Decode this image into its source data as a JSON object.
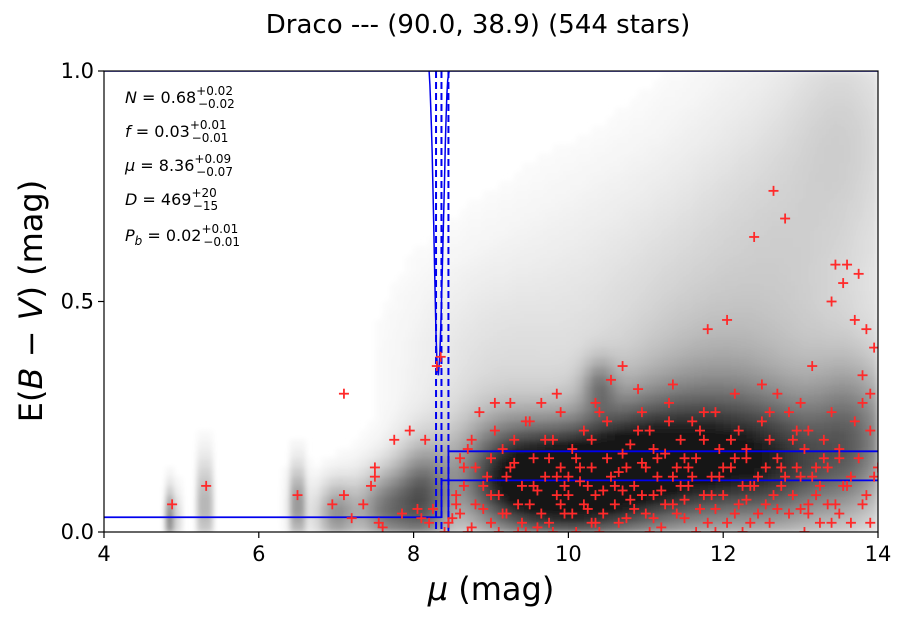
{
  "chart_data": {
    "type": "scatter",
    "title": "Draco --- (90.0, 38.9) (544 stars)",
    "xlabel": "μ (mag)",
    "ylabel": "E(B − V) (mag)",
    "xlim": [
      4,
      14
    ],
    "ylim": [
      0,
      1
    ],
    "x_ticks": [
      4,
      6,
      8,
      10,
      12,
      14
    ],
    "x_tick_labels": [
      "4",
      "6",
      "8",
      "10",
      "12",
      "14"
    ],
    "y_ticks": [
      0,
      0.5,
      1
    ],
    "y_tick_labels": [
      "0.0",
      "0.5",
      "1.0"
    ],
    "grid": false,
    "annotations": [
      {
        "name": "N",
        "value": "0.68",
        "plus": "0.02",
        "minus": "0.02"
      },
      {
        "name": "f",
        "value": "0.03",
        "plus": "0.01",
        "minus": "0.01"
      },
      {
        "name": "μ",
        "value": "8.36",
        "plus": "0.09",
        "minus": "0.07"
      },
      {
        "name": "D",
        "value": "469",
        "plus": "20",
        "minus": "15"
      },
      {
        "name": "P_b",
        "value": "0.02",
        "plus": "0.01",
        "minus": "0.01"
      }
    ],
    "colors": {
      "stars": "#ff2a2a",
      "model": "#0000ee",
      "density": "#000000"
    },
    "density_blobs": [
      {
        "x": 4.88,
        "y": 0.03,
        "sx": 0.04,
        "sy": 0.045,
        "w": 0.8
      },
      {
        "x": 5.3,
        "y": 0.06,
        "sx": 0.04,
        "sy": 0.07,
        "w": 0.75
      },
      {
        "x": 6.5,
        "y": 0.06,
        "sx": 0.07,
        "sy": 0.06,
        "w": 0.6
      },
      {
        "x": 7.0,
        "y": 0.04,
        "sx": 0.18,
        "sy": 0.05,
        "w": 0.5
      },
      {
        "x": 7.6,
        "y": 0.05,
        "sx": 0.25,
        "sy": 0.06,
        "w": 0.55
      },
      {
        "x": 8.1,
        "y": 0.07,
        "sx": 0.25,
        "sy": 0.08,
        "w": 0.7
      },
      {
        "x": 9.2,
        "y": 0.12,
        "sx": 0.5,
        "sy": 0.09,
        "w": 0.8
      },
      {
        "x": 10.0,
        "y": 0.1,
        "sx": 0.55,
        "sy": 0.08,
        "w": 1.0
      },
      {
        "x": 10.8,
        "y": 0.14,
        "sx": 0.6,
        "sy": 0.1,
        "w": 0.85
      },
      {
        "x": 11.8,
        "y": 0.15,
        "sx": 0.65,
        "sy": 0.1,
        "w": 0.75
      },
      {
        "x": 12.8,
        "y": 0.14,
        "sx": 0.55,
        "sy": 0.1,
        "w": 0.6
      },
      {
        "x": 13.7,
        "y": 0.2,
        "sx": 0.4,
        "sy": 0.12,
        "w": 0.55
      },
      {
        "x": 10.4,
        "y": 0.32,
        "sx": 0.15,
        "sy": 0.04,
        "w": 0.35
      },
      {
        "x": 12.0,
        "y": 0.3,
        "sx": 0.9,
        "sy": 0.12,
        "w": 0.25
      },
      {
        "x": 11.5,
        "y": 0.5,
        "sx": 1.5,
        "sy": 0.2,
        "w": 0.15
      },
      {
        "x": 13.0,
        "y": 0.7,
        "sx": 1.0,
        "sy": 0.25,
        "w": 0.15
      },
      {
        "x": 9.0,
        "y": 0.35,
        "sx": 0.8,
        "sy": 0.15,
        "w": 0.12
      },
      {
        "x": 13.6,
        "y": 0.9,
        "sx": 0.5,
        "sy": 0.15,
        "w": 0.12
      }
    ],
    "model_lines": {
      "dashed_verticals": [
        8.29,
        8.36,
        8.45
      ],
      "steps": [
        {
          "x": [
            4,
            8.36
          ],
          "y": [
            0.032,
            0.032
          ]
        },
        {
          "x": [
            8.36,
            8.36
          ],
          "y": [
            0.032,
            0.112
          ]
        },
        {
          "x": [
            8.36,
            14
          ],
          "y": [
            0.112,
            0.112
          ]
        },
        {
          "x": [
            8.45,
            8.45
          ],
          "y": [
            0,
            0.175
          ]
        },
        {
          "x": [
            8.45,
            14
          ],
          "y": [
            0.175,
            0.175
          ]
        }
      ],
      "posterior_left": [
        [
          8.2,
          1.0
        ],
        [
          8.21,
          0.97
        ],
        [
          8.22,
          0.93
        ],
        [
          8.23,
          0.88
        ],
        [
          8.24,
          0.82
        ],
        [
          8.25,
          0.75
        ],
        [
          8.26,
          0.67
        ],
        [
          8.27,
          0.58
        ],
        [
          8.28,
          0.5
        ],
        [
          8.29,
          0.43
        ],
        [
          8.3,
          0.38
        ],
        [
          8.31,
          0.35
        ],
        [
          8.32,
          0.34
        ]
      ],
      "posterior_right": [
        [
          8.32,
          0.34
        ],
        [
          8.33,
          0.36
        ],
        [
          8.34,
          0.39
        ],
        [
          8.35,
          0.44
        ],
        [
          8.36,
          0.5
        ],
        [
          8.37,
          0.56
        ],
        [
          8.38,
          0.63
        ],
        [
          8.39,
          0.7
        ],
        [
          8.4,
          0.77
        ],
        [
          8.41,
          0.84
        ],
        [
          8.42,
          0.9
        ],
        [
          8.43,
          0.95
        ],
        [
          8.44,
          0.98
        ],
        [
          8.46,
          1.0
        ]
      ]
    },
    "points": [
      [
        4.88,
        0.06
      ],
      [
        5.32,
        0.1
      ],
      [
        6.5,
        0.08
      ],
      [
        6.95,
        0.06
      ],
      [
        7.1,
        0.3
      ],
      [
        7.1,
        0.08
      ],
      [
        7.2,
        0.03
      ],
      [
        7.35,
        0.06
      ],
      [
        7.45,
        0.1
      ],
      [
        7.5,
        0.14
      ],
      [
        7.5,
        0.12
      ],
      [
        7.55,
        0.02
      ],
      [
        7.6,
        0.01
      ],
      [
        7.75,
        0.2
      ],
      [
        7.85,
        0.04
      ],
      [
        7.95,
        0.22
      ],
      [
        8.05,
        0.05
      ],
      [
        8.1,
        0.03
      ],
      [
        8.15,
        0.2
      ],
      [
        8.2,
        0.02
      ],
      [
        8.25,
        0.05
      ],
      [
        8.3,
        0.36
      ],
      [
        8.35,
        0.38
      ],
      [
        8.4,
        0.0
      ],
      [
        8.45,
        0.02
      ],
      [
        8.5,
        0.03
      ],
      [
        8.55,
        0.06
      ],
      [
        8.6,
        0.16
      ],
      [
        8.65,
        0.1
      ],
      [
        8.7,
        0.0
      ],
      [
        8.75,
        0.2
      ],
      [
        8.8,
        0.14
      ],
      [
        8.85,
        0.26
      ],
      [
        8.9,
        0.05
      ],
      [
        8.95,
        0.12
      ],
      [
        9.0,
        0.02
      ],
      [
        9.05,
        0.22
      ],
      [
        9.1,
        0.08
      ],
      [
        9.15,
        0.18
      ],
      [
        9.2,
        0.04
      ],
      [
        9.25,
        0.28
      ],
      [
        9.3,
        0.15
      ],
      [
        9.35,
        0.0
      ],
      [
        9.4,
        0.1
      ],
      [
        9.45,
        0.24
      ],
      [
        9.5,
        0.06
      ],
      [
        9.55,
        0.16
      ],
      [
        9.6,
        0.01
      ],
      [
        9.65,
        0.28
      ],
      [
        9.7,
        0.12
      ],
      [
        9.75,
        0.02
      ],
      [
        9.8,
        0.2
      ],
      [
        9.85,
        0.08
      ],
      [
        9.9,
        0.14
      ],
      [
        9.95,
        0.04
      ],
      [
        10.0,
        0.08
      ],
      [
        10.05,
        0.18
      ],
      [
        10.1,
        0.0
      ],
      [
        10.15,
        0.11
      ],
      [
        10.2,
        0.22
      ],
      [
        10.25,
        0.05
      ],
      [
        10.3,
        0.14
      ],
      [
        10.35,
        0.02
      ],
      [
        10.4,
        0.26
      ],
      [
        10.45,
        0.09
      ],
      [
        10.5,
        0.16
      ],
      [
        10.55,
        0.33
      ],
      [
        10.6,
        0.06
      ],
      [
        10.65,
        0.13
      ],
      [
        10.7,
        0.36
      ],
      [
        10.75,
        0.03
      ],
      [
        10.8,
        0.19
      ],
      [
        10.85,
        0.1
      ],
      [
        10.9,
        0.31
      ],
      [
        10.95,
        0.15
      ],
      [
        11.0,
        0.04
      ],
      [
        11.05,
        0.22
      ],
      [
        11.1,
        0.08
      ],
      [
        11.15,
        0.12
      ],
      [
        11.2,
        0.01
      ],
      [
        11.25,
        0.17
      ],
      [
        11.3,
        0.28
      ],
      [
        11.35,
        0.06
      ],
      [
        11.4,
        0.14
      ],
      [
        11.45,
        0.2
      ],
      [
        11.5,
        0.03
      ],
      [
        11.55,
        0.1
      ],
      [
        11.6,
        0.24
      ],
      [
        11.65,
        0.16
      ],
      [
        11.7,
        0.05
      ],
      [
        11.75,
        0.2
      ],
      [
        11.8,
        0.44
      ],
      [
        11.85,
        0.12
      ],
      [
        11.9,
        0.0
      ],
      [
        11.95,
        0.18
      ],
      [
        12.0,
        0.08
      ],
      [
        12.05,
        0.46
      ],
      [
        12.1,
        0.14
      ],
      [
        12.15,
        0.04
      ],
      [
        12.2,
        0.22
      ],
      [
        12.25,
        0.1
      ],
      [
        12.3,
        0.16
      ],
      [
        12.35,
        0.02
      ],
      [
        12.4,
        0.64
      ],
      [
        12.45,
        0.12
      ],
      [
        12.5,
        0.32
      ],
      [
        12.55,
        0.06
      ],
      [
        12.6,
        0.2
      ],
      [
        12.65,
        0.74
      ],
      [
        12.7,
        0.3
      ],
      [
        12.75,
        0.14
      ],
      [
        12.8,
        0.68
      ],
      [
        12.85,
        0.26
      ],
      [
        12.9,
        0.08
      ],
      [
        12.95,
        0.22
      ],
      [
        13.0,
        0.12
      ],
      [
        13.05,
        0.18
      ],
      [
        13.1,
        0.04
      ],
      [
        13.15,
        0.36
      ],
      [
        13.2,
        0.14
      ],
      [
        13.25,
        0.1
      ],
      [
        13.3,
        0.2
      ],
      [
        13.35,
        0.06
      ],
      [
        13.4,
        0.5
      ],
      [
        13.45,
        0.58
      ],
      [
        13.5,
        0.16
      ],
      [
        13.55,
        0.54
      ],
      [
        13.6,
        0.58
      ],
      [
        13.65,
        0.12
      ],
      [
        13.7,
        0.46
      ],
      [
        13.75,
        0.56
      ],
      [
        13.8,
        0.34
      ],
      [
        13.85,
        0.44
      ],
      [
        13.9,
        0.22
      ],
      [
        13.95,
        0.4
      ],
      [
        14.0,
        0.14
      ],
      [
        8.6,
        0.04
      ],
      [
        8.9,
        0.1
      ],
      [
        9.2,
        0.12
      ],
      [
        9.4,
        0.02
      ],
      [
        9.6,
        0.09
      ],
      [
        9.8,
        0.0
      ],
      [
        10.0,
        0.12
      ],
      [
        10.2,
        0.06
      ],
      [
        10.4,
        0.0
      ],
      [
        10.6,
        0.1
      ],
      [
        10.8,
        0.07
      ],
      [
        11.0,
        0.14
      ],
      [
        11.2,
        0.09
      ],
      [
        11.4,
        0.04
      ],
      [
        11.6,
        0.12
      ],
      [
        11.8,
        0.02
      ],
      [
        12.0,
        0.14
      ],
      [
        12.2,
        0.06
      ],
      [
        12.4,
        0.1
      ],
      [
        12.6,
        0.02
      ],
      [
        12.8,
        0.12
      ],
      [
        13.0,
        0.05
      ],
      [
        13.2,
        0.08
      ],
      [
        13.4,
        0.02
      ],
      [
        13.6,
        0.1
      ],
      [
        13.8,
        0.06
      ],
      [
        8.7,
        0.18
      ],
      [
        9.0,
        0.16
      ],
      [
        9.3,
        0.2
      ],
      [
        9.5,
        0.24
      ],
      [
        9.7,
        0.2
      ],
      [
        9.9,
        0.26
      ],
      [
        10.1,
        0.16
      ],
      [
        10.3,
        0.2
      ],
      [
        10.5,
        0.24
      ],
      [
        10.7,
        0.17
      ],
      [
        10.9,
        0.22
      ],
      [
        11.1,
        0.18
      ],
      [
        11.3,
        0.24
      ],
      [
        11.5,
        0.16
      ],
      [
        11.7,
        0.22
      ],
      [
        11.9,
        0.26
      ],
      [
        12.1,
        0.2
      ],
      [
        12.3,
        0.18
      ],
      [
        12.5,
        0.24
      ],
      [
        12.7,
        0.16
      ],
      [
        12.9,
        0.2
      ],
      [
        13.1,
        0.22
      ],
      [
        13.3,
        0.16
      ],
      [
        13.5,
        0.18
      ],
      [
        13.7,
        0.24
      ],
      [
        13.9,
        0.3
      ],
      [
        8.55,
        0.08
      ],
      [
        8.8,
        0.06
      ],
      [
        9.1,
        0.0
      ],
      [
        9.35,
        0.06
      ],
      [
        9.65,
        0.04
      ],
      [
        9.85,
        0.12
      ],
      [
        10.05,
        0.04
      ],
      [
        10.25,
        0.1
      ],
      [
        10.45,
        0.04
      ],
      [
        10.65,
        0.02
      ],
      [
        10.85,
        0.05
      ],
      [
        11.05,
        0.0
      ],
      [
        11.25,
        0.06
      ],
      [
        11.45,
        0.1
      ],
      [
        11.65,
        0.0
      ],
      [
        11.85,
        0.08
      ],
      [
        12.05,
        0.02
      ],
      [
        12.25,
        0.0
      ],
      [
        12.45,
        0.04
      ],
      [
        12.65,
        0.08
      ],
      [
        12.85,
        0.04
      ],
      [
        13.05,
        0.0
      ],
      [
        13.25,
        0.02
      ],
      [
        13.45,
        0.06
      ],
      [
        13.65,
        0.02
      ],
      [
        13.85,
        0.08
      ],
      [
        8.65,
        0.14
      ],
      [
        9.0,
        0.08
      ],
      [
        9.25,
        0.14
      ],
      [
        9.55,
        0.1
      ],
      [
        9.75,
        0.16
      ],
      [
        9.95,
        0.1
      ],
      [
        10.15,
        0.14
      ],
      [
        10.35,
        0.08
      ],
      [
        10.55,
        0.12
      ],
      [
        10.75,
        0.14
      ],
      [
        10.95,
        0.08
      ],
      [
        11.15,
        0.16
      ],
      [
        11.35,
        0.12
      ],
      [
        11.55,
        0.14
      ],
      [
        11.75,
        0.08
      ],
      [
        11.95,
        0.12
      ],
      [
        12.15,
        0.16
      ],
      [
        12.35,
        0.1
      ],
      [
        12.55,
        0.14
      ],
      [
        12.75,
        0.1
      ],
      [
        12.95,
        0.14
      ],
      [
        13.15,
        0.12
      ],
      [
        13.35,
        0.14
      ],
      [
        13.55,
        0.1
      ],
      [
        13.75,
        0.16
      ],
      [
        13.95,
        0.12
      ],
      [
        8.75,
        0.01
      ],
      [
        9.15,
        0.04
      ],
      [
        9.45,
        0.0
      ],
      [
        9.9,
        0.06
      ],
      [
        10.3,
        0.02
      ],
      [
        10.7,
        0.09
      ],
      [
        11.1,
        0.03
      ],
      [
        11.5,
        0.07
      ],
      [
        11.9,
        0.05
      ],
      [
        12.3,
        0.07
      ],
      [
        12.7,
        0.05
      ],
      [
        13.1,
        0.06
      ],
      [
        13.5,
        0.04
      ],
      [
        13.9,
        0.02
      ],
      [
        9.05,
        0.28
      ],
      [
        9.85,
        0.3
      ],
      [
        10.35,
        0.28
      ],
      [
        10.95,
        0.26
      ],
      [
        11.35,
        0.32
      ],
      [
        11.75,
        0.26
      ],
      [
        12.15,
        0.3
      ],
      [
        12.6,
        0.26
      ],
      [
        13.0,
        0.28
      ],
      [
        13.4,
        0.26
      ],
      [
        13.8,
        0.28
      ]
    ]
  }
}
